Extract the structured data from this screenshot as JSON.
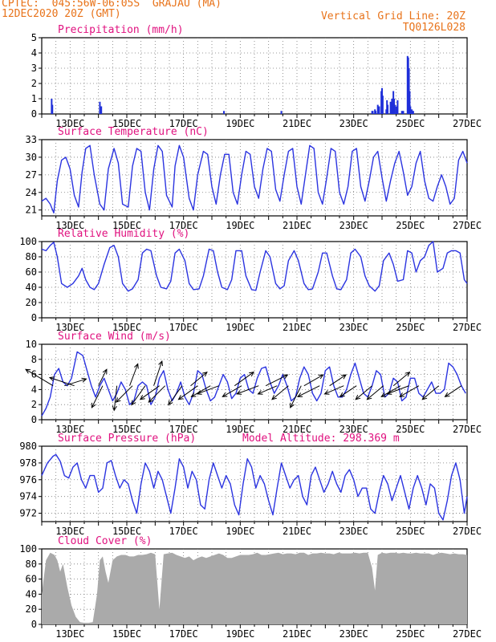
{
  "header": {
    "line1_left": "CPTEC:  045:56W-06:05S  GRAJAU (MA)",
    "line2_left": "12DEC2020 20Z (GMT)",
    "line1_right": "Vertical Grid Line: 20Z",
    "line2_right": "TQ0126L028",
    "color": "#e8731a"
  },
  "x_tick_labels": [
    "13DEC",
    "15DEC",
    "17DEC",
    "19DEC",
    "21DEC",
    "23DEC",
    "25DEC",
    "27DEC"
  ],
  "colors": {
    "title": "#e0117f",
    "line": "#2b34e0",
    "bar": "#1e2fd9",
    "cloud": "#aaaaaa",
    "arrow": "#000000"
  },
  "chart_data": [
    {
      "type": "bar",
      "title": "Precipitation (mm/h)",
      "ylim": [
        0,
        5
      ],
      "yticks": [
        0,
        1,
        2,
        3,
        4,
        5
      ],
      "x": [
        0.7,
        0.75,
        4.1,
        4.2,
        12.85,
        16.9,
        23.3,
        23.35,
        23.5,
        23.55,
        23.7,
        23.8,
        23.95,
        24.0,
        24.05,
        24.3,
        24.35,
        24.4,
        24.6,
        24.7,
        24.75,
        24.8,
        24.85,
        24.9,
        25.0,
        25.1,
        25.4,
        25.5,
        25.8,
        25.85,
        25.9,
        25.95,
        26.0,
        26.1,
        26.2
      ],
      "values": [
        1.0,
        0.6,
        0.8,
        0.5,
        0.2,
        0.2,
        0.2,
        0.2,
        0.3,
        0.2,
        0.6,
        0.5,
        1.5,
        1.7,
        1.2,
        0.3,
        0.9,
        0.6,
        0.8,
        1.0,
        0.7,
        1.5,
        1.0,
        0.6,
        0.5,
        0.9,
        0.2,
        0.2,
        3.8,
        3.7,
        3.0,
        1.5,
        0.5,
        0.3,
        0.2
      ],
      "grid": true
    },
    {
      "type": "line",
      "title": "Surface Temperature (nC)",
      "ylim": [
        20,
        33
      ],
      "yticks": [
        21,
        24,
        27,
        30,
        33
      ],
      "x": [
        0,
        0.3,
        0.6,
        0.85,
        1.1,
        1.4,
        1.7,
        2.0,
        2.3,
        2.6,
        2.85,
        3.1,
        3.4,
        3.7,
        4.1,
        4.4,
        4.7,
        5.1,
        5.4,
        5.7,
        6.1,
        6.4,
        6.7,
        7.0,
        7.3,
        7.6,
        7.9,
        8.2,
        8.5,
        8.8,
        9.2,
        9.4,
        9.7,
        10.0,
        10.4,
        10.7,
        11.0,
        11.4,
        11.7,
        12.0,
        12.3,
        12.6,
        12.9,
        13.2,
        13.5,
        13.8,
        14.1,
        14.4,
        14.7,
        15.0,
        15.3,
        15.6,
        15.9,
        16.2,
        16.5,
        16.8,
        17.1,
        17.4,
        17.7,
        18.0,
        18.3,
        18.6,
        18.9,
        19.2,
        19.5,
        19.8,
        20.1,
        20.4,
        20.7,
        21.0,
        21.3,
        21.6,
        21.9,
        22.2,
        22.5,
        22.8,
        23.1,
        23.4,
        23.7,
        24.0,
        24.3,
        24.6,
        24.9,
        25.2,
        25.5,
        25.8,
        26.1,
        26.4,
        26.7,
        27.0,
        27.3,
        27.6,
        27.9,
        28.2,
        28.5,
        28.8,
        29.1,
        29.4,
        29.7,
        30.0
      ],
      "values": [
        22.5,
        23.0,
        22.0,
        20.5,
        26.0,
        29.5,
        30.0,
        28.0,
        23.5,
        21.5,
        27.5,
        31.5,
        32.0,
        27.0,
        22.0,
        21.0,
        28.0,
        31.5,
        29.0,
        22.0,
        21.5,
        28.5,
        31.5,
        31.0,
        24.0,
        21.0,
        28.0,
        32.0,
        31.0,
        23.5,
        21.5,
        28.5,
        32.0,
        30.0,
        23.0,
        21.0,
        27.0,
        31.0,
        30.5,
        25.0,
        22.0,
        27.0,
        30.5,
        30.5,
        24.0,
        22.0,
        27.0,
        31.0,
        30.5,
        25.0,
        23.0,
        28.0,
        31.5,
        31.0,
        24.5,
        22.5,
        27.0,
        31.0,
        31.5,
        25.0,
        22.0,
        27.0,
        32.0,
        31.5,
        24.0,
        22.0,
        26.5,
        31.5,
        31.0,
        24.0,
        22.0,
        25.0,
        31.0,
        31.5,
        25.0,
        22.5,
        26.0,
        30.0,
        31.0,
        26.5,
        22.5,
        26.0,
        29.0,
        31.0,
        27.5,
        23.5,
        25.0,
        29.0,
        31.0,
        26.0,
        23.0,
        22.5,
        25.0,
        27.0,
        25.0,
        22.0,
        23.0,
        29.5,
        31.0,
        29.0
      ],
      "grid": true
    },
    {
      "type": "line",
      "title": "Relative Humidity (%)",
      "ylim": [
        0,
        100
      ],
      "yticks": [
        0,
        20,
        40,
        60,
        80,
        100
      ],
      "x": [
        0,
        0.3,
        0.6,
        0.85,
        1.1,
        1.4,
        1.8,
        2.2,
        2.6,
        2.85,
        3.1,
        3.4,
        3.7,
        4.0,
        4.4,
        4.8,
        5.1,
        5.4,
        5.7,
        6.1,
        6.4,
        6.8,
        7.1,
        7.4,
        7.7,
        8.1,
        8.4,
        8.8,
        9.1,
        9.4,
        9.7,
        10.1,
        10.4,
        10.7,
        11.1,
        11.4,
        11.8,
        12.1,
        12.4,
        12.7,
        13.1,
        13.4,
        13.7,
        14.1,
        14.4,
        14.8,
        15.1,
        15.4,
        15.8,
        16.1,
        16.5,
        16.8,
        17.1,
        17.4,
        17.8,
        18.1,
        18.5,
        18.8,
        19.1,
        19.5,
        19.8,
        20.1,
        20.5,
        20.8,
        21.1,
        21.5,
        21.8,
        22.1,
        22.5,
        22.8,
        23.1,
        23.5,
        23.8,
        24.1,
        24.5,
        24.8,
        25.1,
        25.5,
        25.8,
        26.1,
        26.4,
        26.7,
        27.0,
        27.3,
        27.6,
        27.9,
        28.3,
        28.6,
        28.9,
        29.2,
        29.5,
        29.8,
        30.0
      ],
      "values": [
        90,
        88,
        95,
        99,
        80,
        45,
        40,
        45,
        55,
        65,
        50,
        40,
        37,
        45,
        70,
        92,
        95,
        80,
        45,
        35,
        38,
        50,
        85,
        90,
        88,
        55,
        40,
        38,
        48,
        85,
        90,
        75,
        45,
        37,
        38,
        55,
        90,
        88,
        60,
        40,
        37,
        50,
        88,
        88,
        55,
        37,
        36,
        60,
        88,
        80,
        45,
        38,
        42,
        75,
        88,
        75,
        45,
        37,
        38,
        60,
        85,
        85,
        55,
        38,
        37,
        50,
        85,
        90,
        80,
        55,
        42,
        35,
        42,
        75,
        85,
        70,
        48,
        50,
        88,
        85,
        60,
        75,
        80,
        95,
        100,
        60,
        65,
        85,
        88,
        88,
        85,
        50,
        45
      ],
      "grid": true
    },
    {
      "type": "line",
      "title": "Surface Wind (m/s)",
      "ylim": [
        0,
        10
      ],
      "yticks": [
        0,
        2,
        4,
        6,
        8,
        10
      ],
      "x": [
        0,
        0.3,
        0.6,
        0.9,
        1.2,
        1.5,
        1.8,
        2.1,
        2.5,
        2.9,
        3.2,
        3.5,
        3.8,
        4.1,
        4.4,
        4.7,
        5.0,
        5.3,
        5.6,
        5.9,
        6.2,
        6.5,
        6.8,
        7.1,
        7.4,
        7.7,
        8.0,
        8.3,
        8.6,
        8.9,
        9.2,
        9.5,
        9.8,
        10.1,
        10.4,
        10.7,
        11.0,
        11.3,
        11.6,
        11.9,
        12.2,
        12.5,
        12.8,
        13.1,
        13.4,
        13.7,
        14.0,
        14.3,
        14.6,
        14.9,
        15.2,
        15.5,
        15.8,
        16.1,
        16.4,
        16.7,
        17.0,
        17.3,
        17.6,
        17.9,
        18.2,
        18.5,
        18.8,
        19.1,
        19.4,
        19.7,
        20.0,
        20.3,
        20.6,
        20.9,
        21.2,
        21.5,
        21.8,
        22.1,
        22.4,
        22.7,
        23.0,
        23.3,
        23.6,
        23.9,
        24.2,
        24.5,
        24.8,
        25.1,
        25.4,
        25.7,
        26.0,
        26.3,
        26.6,
        26.9,
        27.2,
        27.5,
        27.8,
        28.1,
        28.4,
        28.7,
        29.0,
        29.3,
        29.6,
        29.9
      ],
      "values": [
        0.5,
        1.5,
        3.0,
        6.0,
        6.8,
        5.0,
        4.5,
        5.5,
        9.0,
        8.5,
        6.5,
        4.5,
        3.0,
        4.5,
        5.5,
        4.0,
        2.5,
        3.5,
        5.0,
        4.0,
        2.0,
        2.5,
        4.5,
        5.0,
        4.5,
        2.0,
        3.0,
        5.5,
        6.5,
        4.0,
        2.5,
        3.5,
        5.0,
        3.0,
        2.0,
        3.5,
        6.5,
        6.0,
        4.0,
        2.5,
        3.0,
        4.5,
        6.0,
        5.0,
        2.8,
        3.5,
        5.5,
        6.0,
        4.0,
        3.5,
        5.5,
        6.8,
        7.0,
        5.0,
        3.5,
        4.5,
        6.0,
        4.5,
        2.5,
        3.0,
        5.5,
        7.0,
        6.0,
        3.5,
        2.5,
        3.5,
        6.5,
        7.0,
        4.5,
        3.0,
        3.0,
        4.0,
        6.0,
        7.5,
        5.5,
        3.5,
        3.0,
        4.5,
        6.5,
        6.0,
        3.0,
        3.5,
        5.5,
        5.0,
        2.5,
        3.0,
        5.5,
        5.5,
        3.5,
        3.0,
        4.0,
        5.0,
        3.5,
        3.5,
        4.0,
        7.5,
        7.0,
        6.0,
        4.5,
        3.5
      ],
      "arrows": [
        [
          0.8,
          1,
          -1.0,
          0.6
        ],
        [
          1.6,
          1,
          0.8,
          0.25
        ],
        [
          2.3,
          1,
          -0.9,
          0.3
        ],
        [
          4.0,
          1,
          0.3,
          0.6
        ],
        [
          4.3,
          1,
          -0.4,
          -0.8
        ],
        [
          5.3,
          1,
          -0.1,
          -0.9
        ],
        [
          6.2,
          1,
          0.3,
          0.8
        ],
        [
          6.4,
          1,
          -0.6,
          -0.6
        ],
        [
          7.3,
          1,
          -0.5,
          -0.7
        ],
        [
          7.9,
          1,
          0.3,
          0.9
        ],
        [
          8.3,
          1,
          -0.7,
          -0.5
        ],
        [
          8.7,
          1,
          -0.6,
          -0.6
        ],
        [
          9.9,
          1,
          -0.5,
          -0.7
        ],
        [
          10.5,
          1,
          0.6,
          0.5
        ],
        [
          11.0,
          1,
          -0.7,
          -0.5
        ],
        [
          11.9,
          1,
          -0.7,
          -0.4
        ],
        [
          12.5,
          1,
          -0.8,
          -0.3
        ],
        [
          13.6,
          1,
          0.7,
          0.5
        ],
        [
          14.1,
          1,
          -0.7,
          -0.4
        ],
        [
          15.3,
          1,
          -0.8,
          -0.3
        ],
        [
          15.8,
          1,
          0.8,
          0.4
        ],
        [
          16.6,
          1,
          -0.7,
          -0.3
        ],
        [
          17.4,
          1,
          -0.6,
          -0.5
        ],
        [
          18.3,
          1,
          -0.4,
          -0.8
        ],
        [
          18.5,
          1,
          0.7,
          0.4
        ],
        [
          19.6,
          1,
          -0.8,
          -0.4
        ],
        [
          20.3,
          1,
          0.6,
          0.4
        ],
        [
          21.3,
          1,
          -0.7,
          -0.3
        ],
        [
          22.2,
          1,
          -0.6,
          -0.4
        ],
        [
          23.3,
          1,
          -0.6,
          -0.5
        ],
        [
          24.1,
          1,
          -0.6,
          -0.5
        ],
        [
          24.8,
          1,
          0.6,
          0.5
        ],
        [
          25.3,
          1,
          -0.7,
          -0.4
        ],
        [
          25.9,
          1,
          -0.8,
          -0.3
        ],
        [
          26.6,
          1,
          -0.7,
          -0.4
        ],
        [
          28.0,
          1,
          -0.6,
          -0.5
        ],
        [
          29.6,
          1,
          -0.6,
          -0.4
        ]
      ],
      "grid": true
    },
    {
      "type": "line",
      "title": "Surface Pressure (hPa)",
      "subtitle": "Model Altitude: 298.369 m",
      "ylim": [
        971,
        980
      ],
      "yticks": [
        972,
        974,
        976,
        978,
        980
      ],
      "x": [
        0,
        0.4,
        0.8,
        1.0,
        1.3,
        1.6,
        1.9,
        2.2,
        2.5,
        2.8,
        3.1,
        3.4,
        3.7,
        4.0,
        4.3,
        4.6,
        4.9,
        5.2,
        5.5,
        5.8,
        6.1,
        6.4,
        6.7,
        7.0,
        7.3,
        7.6,
        7.9,
        8.2,
        8.5,
        8.8,
        9.1,
        9.4,
        9.7,
        10.0,
        10.3,
        10.6,
        10.9,
        11.2,
        11.5,
        11.8,
        12.1,
        12.4,
        12.7,
        13.0,
        13.3,
        13.6,
        13.9,
        14.2,
        14.5,
        14.8,
        15.1,
        15.4,
        15.7,
        16.0,
        16.3,
        16.6,
        16.9,
        17.2,
        17.5,
        17.8,
        18.1,
        18.4,
        18.7,
        19.0,
        19.3,
        19.6,
        19.9,
        20.2,
        20.5,
        20.8,
        21.1,
        21.4,
        21.7,
        22.0,
        22.3,
        22.6,
        22.9,
        23.2,
        23.5,
        23.8,
        24.1,
        24.4,
        24.7,
        25.0,
        25.3,
        25.6,
        25.9,
        26.2,
        26.5,
        26.8,
        27.1,
        27.4,
        27.7,
        28.0,
        28.3,
        28.6,
        28.9,
        29.2,
        29.5,
        29.8,
        30.0
      ],
      "values": [
        976.5,
        978.0,
        978.8,
        979.0,
        978.2,
        976.5,
        976.2,
        977.5,
        978.0,
        976.0,
        975.0,
        976.5,
        976.5,
        974.5,
        975.0,
        978.0,
        978.3,
        976.5,
        975.0,
        976.0,
        975.5,
        973.5,
        972.0,
        975.5,
        978.0,
        977.0,
        975.0,
        977.0,
        976.0,
        974.0,
        972.0,
        975.0,
        978.5,
        977.5,
        975.0,
        977.0,
        976.0,
        973.0,
        972.5,
        976.0,
        978.0,
        976.5,
        975.0,
        976.5,
        975.5,
        973.0,
        971.8,
        975.5,
        978.5,
        977.5,
        975.0,
        976.5,
        975.5,
        973.5,
        971.8,
        975.0,
        978.0,
        976.5,
        975.0,
        976.0,
        976.5,
        974.0,
        973.0,
        976.5,
        977.5,
        976.0,
        974.5,
        975.5,
        977.0,
        975.5,
        974.5,
        976.5,
        977.2,
        976.0,
        974.0,
        975.0,
        975.0,
        972.5,
        972.0,
        974.5,
        976.5,
        975.5,
        973.5,
        975.0,
        976.5,
        974.5,
        972.5,
        975.0,
        976.5,
        975.0,
        973.0,
        975.5,
        975.0,
        972.0,
        971.2,
        973.5,
        976.5,
        978.0,
        976.0,
        972.0,
        974.0
      ],
      "grid": true
    },
    {
      "type": "area",
      "title": "Cloud Cover (%)",
      "ylim": [
        0,
        100
      ],
      "yticks": [
        0,
        20,
        40,
        60,
        80,
        100
      ],
      "x": [
        0,
        0.3,
        0.6,
        0.9,
        1.1,
        1.3,
        1.5,
        1.8,
        2.1,
        2.4,
        2.7,
        3.0,
        3.3,
        3.6,
        3.9,
        4.1,
        4.3,
        4.5,
        4.7,
        5.0,
        5.3,
        5.6,
        5.9,
        6.2,
        6.5,
        6.8,
        7.1,
        7.4,
        7.7,
        8.0,
        8.3,
        8.6,
        8.9,
        9.2,
        9.5,
        9.8,
        10.1,
        10.4,
        10.7,
        11.0,
        11.3,
        11.6,
        11.9,
        12.2,
        12.5,
        12.8,
        13.1,
        13.4,
        13.7,
        14.0,
        14.3,
        14.6,
        14.9,
        15.2,
        15.5,
        15.8,
        16.1,
        16.4,
        16.7,
        17.0,
        17.3,
        17.6,
        17.9,
        18.2,
        18.5,
        18.8,
        19.1,
        19.4,
        19.7,
        20.0,
        20.3,
        20.6,
        20.9,
        21.2,
        21.5,
        21.8,
        22.1,
        22.4,
        22.7,
        23.0,
        23.3,
        23.5,
        23.7,
        24.0,
        24.3,
        24.6,
        24.9,
        25.2,
        25.5,
        25.8,
        26.1,
        26.4,
        26.7,
        27.0,
        27.3,
        27.6,
        27.9,
        28.2,
        28.5,
        28.8,
        29.1,
        29.4,
        29.7,
        30.0
      ],
      "values": [
        40,
        85,
        95,
        92,
        85,
        70,
        80,
        50,
        25,
        10,
        3,
        2,
        2,
        3,
        40,
        85,
        90,
        70,
        55,
        85,
        90,
        92,
        92,
        90,
        90,
        92,
        92,
        93,
        95,
        93,
        20,
        93,
        94,
        95,
        92,
        90,
        88,
        90,
        85,
        88,
        90,
        88,
        90,
        92,
        94,
        92,
        88,
        88,
        90,
        92,
        92,
        92,
        93,
        95,
        92,
        92,
        93,
        94,
        95,
        93,
        94,
        94,
        93,
        95,
        95,
        92,
        94,
        94,
        95,
        94,
        94,
        93,
        95,
        94,
        94,
        94,
        95,
        94,
        95,
        95,
        75,
        45,
        92,
        95,
        94,
        95,
        95,
        94,
        95,
        94,
        94,
        95,
        94,
        94,
        94,
        92,
        94,
        95,
        94,
        93,
        94,
        93,
        93,
        92
      ],
      "grid": true
    }
  ]
}
